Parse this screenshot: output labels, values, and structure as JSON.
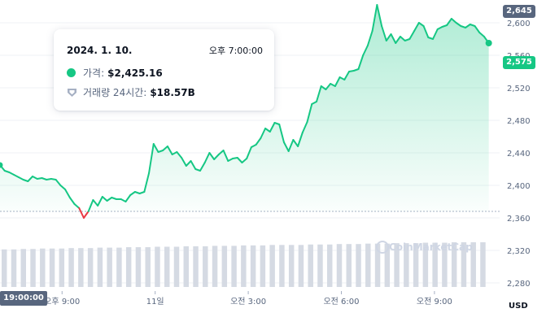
{
  "chart_data": {
    "type": "line",
    "y_ticks": [
      "2,600",
      "2,560",
      "2,520",
      "2,480",
      "2,440",
      "2,400",
      "2,360",
      "2,320",
      "2,280"
    ],
    "y_tick_values": [
      2600,
      2560,
      2520,
      2480,
      2440,
      2400,
      2360,
      2320,
      2280
    ],
    "ylim": [
      2266,
      2652
    ],
    "x_ticks": [
      "오후 9:00",
      "11일",
      "오전 3:00",
      "오전 6:00",
      "오전 9:00"
    ],
    "x_tick_hours": [
      2,
      5,
      8,
      11,
      14
    ],
    "x_range_hours": [
      0,
      16.1
    ],
    "top_badge": "2,645",
    "top_badge_value": 2645,
    "current_badge": "2,575",
    "current_value": 2575,
    "start_dashed_value": 2368,
    "time_badge": "19:00:00",
    "currency": "USD",
    "watermark": "CoinMarketCap",
    "colors": {
      "up": "#16c784",
      "down": "#ea3943",
      "grid": "#eff2f5",
      "badge": "#58667e"
    },
    "price_series": {
      "t_hours": [
        0,
        0.15,
        0.3,
        0.45,
        0.6,
        0.75,
        0.9,
        1.05,
        1.2,
        1.35,
        1.5,
        1.65,
        1.8,
        1.95,
        2.1,
        2.25,
        2.4,
        2.55,
        2.7,
        2.85,
        3,
        3.15,
        3.3,
        3.45,
        3.6,
        3.75,
        3.9,
        4.05,
        4.2,
        4.35,
        4.5,
        4.65,
        4.8,
        4.95,
        5.1,
        5.25,
        5.4,
        5.55,
        5.7,
        5.85,
        6,
        6.15,
        6.3,
        6.45,
        6.6,
        6.75,
        6.9,
        7.05,
        7.2,
        7.35,
        7.5,
        7.65,
        7.8,
        7.95,
        8.1,
        8.25,
        8.4,
        8.55,
        8.7,
        8.85,
        9,
        9.15,
        9.3,
        9.45,
        9.6,
        9.75,
        9.9,
        10.05,
        10.2,
        10.35,
        10.5,
        10.65,
        10.8,
        10.95,
        11.1,
        11.25,
        11.4,
        11.55,
        11.7,
        11.85,
        12,
        12.15,
        12.3,
        12.45,
        12.6,
        12.75,
        12.9,
        13.05,
        13.2,
        13.35,
        13.5,
        13.65,
        13.8,
        13.95,
        14.1,
        14.25,
        14.4,
        14.55,
        14.7,
        14.85,
        15,
        15.15,
        15.3,
        15.45,
        15.6,
        15.75
      ],
      "values": [
        2425,
        2418,
        2416,
        2413,
        2410,
        2407,
        2405,
        2411,
        2408,
        2409,
        2407,
        2408,
        2407,
        2400,
        2395,
        2385,
        2377,
        2372,
        2360,
        2368,
        2382,
        2375,
        2386,
        2381,
        2385,
        2383,
        2383,
        2380,
        2388,
        2392,
        2390,
        2392,
        2415,
        2451,
        2441,
        2443,
        2448,
        2438,
        2441,
        2434,
        2424,
        2430,
        2420,
        2418,
        2428,
        2440,
        2432,
        2438,
        2443,
        2430,
        2433,
        2434,
        2428,
        2433,
        2447,
        2450,
        2458,
        2470,
        2466,
        2477,
        2475,
        2453,
        2442,
        2456,
        2448,
        2465,
        2478,
        2500,
        2503,
        2522,
        2518,
        2525,
        2522,
        2533,
        2530,
        2540,
        2541,
        2543,
        2560,
        2572,
        2590,
        2622,
        2596,
        2578,
        2586,
        2575,
        2583,
        2578,
        2580,
        2590,
        2600,
        2596,
        2582,
        2580,
        2592,
        2595,
        2597,
        2605,
        2600,
        2596,
        2594,
        2598,
        2596,
        2588,
        2583,
        2575
      ]
    },
    "volume_fraction": [
      0.84,
      0.84,
      0.85,
      0.85,
      0.86,
      0.86,
      0.86,
      0.87,
      0.87,
      0.87,
      0.88,
      0.88,
      0.88,
      0.89,
      0.89,
      0.89,
      0.9,
      0.9,
      0.9,
      0.91,
      0.91,
      0.91,
      0.92,
      0.92,
      0.92,
      0.93,
      0.93,
      0.93,
      0.94,
      0.94,
      0.94,
      0.94,
      0.95,
      0.95,
      0.95,
      0.96,
      0.96,
      0.96,
      0.97,
      0.97,
      0.97,
      0.98,
      0.98,
      0.98,
      0.99,
      0.99,
      0.99,
      1.0,
      1.0,
      1.0,
      1.0
    ]
  },
  "tooltip": {
    "date": "2024. 1. 10.",
    "time": "오후 7:00:00",
    "price_label": "가격:",
    "price_value": "$2,425.16",
    "volume_label": "거래량 24시간:",
    "volume_value": "$18.57B",
    "dot_color": "#16c784",
    "volume_icon": "volume-heart-icon"
  }
}
